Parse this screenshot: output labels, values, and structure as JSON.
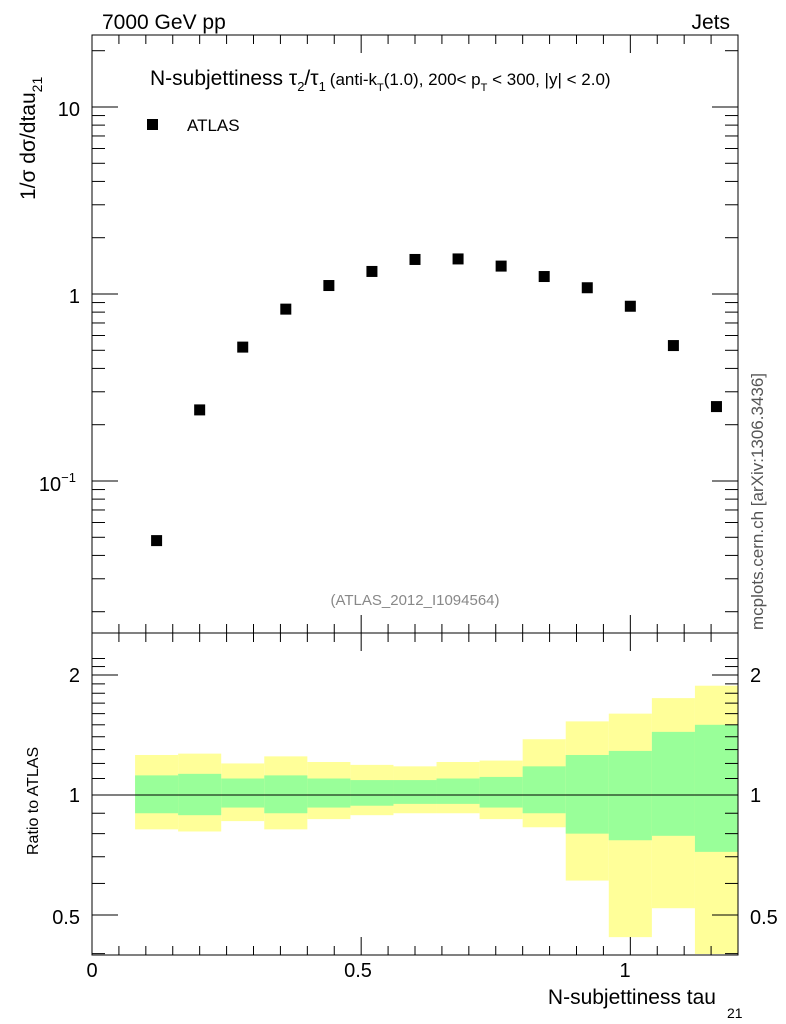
{
  "header": {
    "energy_label": "7000 GeV pp",
    "process_label": "Jets",
    "side_label": "mcplots.cern.ch [arXiv:1306.3436]"
  },
  "chart_data": [
    {
      "type": "scatter",
      "title_main": "N-subjettiness τ",
      "title_sub_2": "2",
      "title_slash": "/τ",
      "title_sub_1": "1",
      "title_cond_a": "(anti-k",
      "title_cond_sub_t": "T",
      "title_cond_b": "(1.0), 200< p",
      "title_cond_sub_t2": "T",
      "title_cond_c": " < 300, |y| < 2.0)",
      "ylabel": "1/σ dσ/dtau",
      "ylabel_sub": "21",
      "yscale": "log",
      "ylim": [
        0.018,
        25
      ],
      "xlim": [
        0,
        1.2
      ],
      "y_tick_labels": [
        "10",
        "1"
      ],
      "y_tick_label_minus1_base": "10",
      "y_tick_label_minus1_exp": "−1",
      "legend": {
        "entry": "ATLAS",
        "position": "top-left"
      },
      "analysis_tag": "(ATLAS_2012_I1094564)",
      "series": [
        {
          "name": "ATLAS",
          "marker": "square",
          "color": "#000000",
          "x": [
            0.12,
            0.2,
            0.28,
            0.36,
            0.44,
            0.52,
            0.6,
            0.68,
            0.76,
            0.84,
            0.92,
            1.0,
            1.08,
            1.16
          ],
          "y": [
            0.048,
            0.24,
            0.52,
            0.83,
            1.11,
            1.32,
            1.53,
            1.54,
            1.41,
            1.24,
            1.08,
            0.86,
            0.53,
            0.25
          ]
        }
      ]
    },
    {
      "type": "area",
      "ylabel": "Ratio to ATLAS",
      "xlabel": "N-subjettiness tau",
      "xlabel_sub": "21",
      "xlim": [
        0,
        1.2
      ],
      "ylim": [
        0.35,
        2.3
      ],
      "yscale": "log",
      "x_tick_labels": [
        "0",
        "0.5",
        "1"
      ],
      "y_tick_labels": [
        "2",
        "1",
        "0.5"
      ],
      "reference_line": 1,
      "bin_edges": [
        0.08,
        0.16,
        0.24,
        0.32,
        0.4,
        0.48,
        0.56,
        0.64,
        0.72,
        0.8,
        0.88,
        0.96,
        1.04,
        1.12,
        1.2
      ],
      "bands": [
        {
          "color": "#ffff99",
          "lower": [
            0.82,
            0.81,
            0.86,
            0.82,
            0.87,
            0.89,
            0.9,
            0.9,
            0.87,
            0.83,
            0.61,
            0.44,
            0.52,
            0.33,
            0.33
          ],
          "upper": [
            1.26,
            1.27,
            1.2,
            1.25,
            1.21,
            1.19,
            1.18,
            1.21,
            1.22,
            1.38,
            1.53,
            1.6,
            1.75,
            1.88,
            1.88
          ]
        },
        {
          "color": "#99ff99",
          "lower": [
            0.9,
            0.89,
            0.93,
            0.9,
            0.93,
            0.94,
            0.95,
            0.95,
            0.93,
            0.9,
            0.8,
            0.77,
            0.79,
            0.72,
            0.64
          ],
          "upper": [
            1.12,
            1.13,
            1.1,
            1.12,
            1.1,
            1.09,
            1.09,
            1.1,
            1.11,
            1.18,
            1.26,
            1.29,
            1.44,
            1.5,
            1.5
          ]
        }
      ]
    }
  ]
}
